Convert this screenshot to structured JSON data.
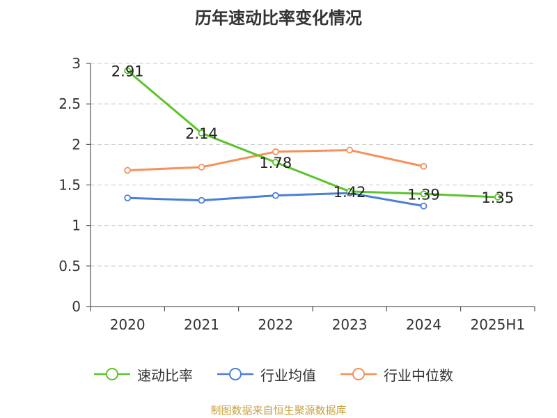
{
  "chart_data": {
    "type": "line",
    "title": "历年速动比率变化情况",
    "categories": [
      "2020",
      "2021",
      "2022",
      "2023",
      "2024",
      "2025H1"
    ],
    "ylim": [
      0,
      3
    ],
    "yticks": [
      "0",
      "0.5",
      "1",
      "1.5",
      "2",
      "2.5",
      "3"
    ],
    "grid": true,
    "legend_position": "bottom",
    "series": [
      {
        "name": "速动比率",
        "color": "#5cc42b",
        "values": [
          2.91,
          2.14,
          1.78,
          1.42,
          1.39,
          1.35
        ],
        "labels": [
          "2.91",
          "2.14",
          "1.78",
          "1.42",
          "1.39",
          "1.35"
        ]
      },
      {
        "name": "行业均值",
        "color": "#4a7fd8",
        "values": [
          1.34,
          1.31,
          1.37,
          1.4,
          1.24,
          null
        ]
      },
      {
        "name": "行业中位数",
        "color": "#f5905a",
        "values": [
          1.68,
          1.72,
          1.91,
          1.93,
          1.73,
          null
        ]
      }
    ]
  },
  "source": "制图数据来自恒生聚源数据库"
}
